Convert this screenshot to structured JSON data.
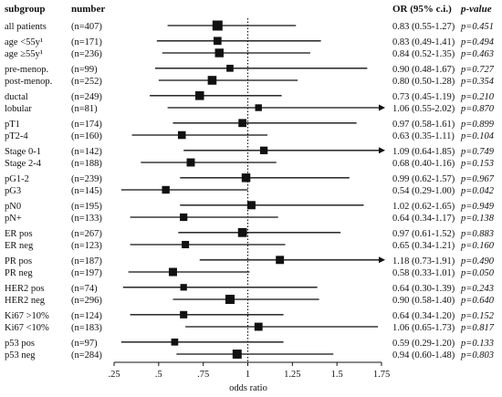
{
  "chart_data": {
    "type": "forest",
    "headers": {
      "subgroup": "subgroup",
      "number": "number",
      "or_ci": "OR (95% c.i.)",
      "pvalue": "p-value"
    },
    "xlabel": "odds ratio",
    "xlim": [
      0.25,
      1.75
    ],
    "x_ticks": [
      ".25",
      ".5",
      ".75",
      "1",
      "1.25",
      "1.5",
      "1.75"
    ],
    "reference_line": 1,
    "rows": [
      {
        "group": 0,
        "label": "all patients",
        "n": "(n=407)",
        "or": 0.83,
        "lo": 0.55,
        "hi": 1.27,
        "ci_text": "0.83 (0.55-1.27)",
        "p_text": "p=0.451",
        "weight": 1.0
      },
      {
        "group": 1,
        "label": "age <55y¹",
        "n": "(n=171)",
        "or": 0.83,
        "lo": 0.49,
        "hi": 1.41,
        "ci_text": "0.83 (0.49-1.41)",
        "p_text": "p=0.494",
        "weight": 0.42
      },
      {
        "group": 1,
        "label": "age ≥55y¹",
        "n": "(n=236)",
        "or": 0.84,
        "lo": 0.52,
        "hi": 1.35,
        "ci_text": "0.84 (0.52-1.35)",
        "p_text": "p=0.463",
        "weight": 0.58
      },
      {
        "group": 2,
        "label": "pre-menop.",
        "n": "(n=99)",
        "or": 0.9,
        "lo": 0.48,
        "hi": 1.67,
        "ci_text": "0.90 (0.48-1.67)",
        "p_text": "p=0.727",
        "weight": 0.24
      },
      {
        "group": 2,
        "label": "post-menop.",
        "n": "(n=252)",
        "or": 0.8,
        "lo": 0.5,
        "hi": 1.28,
        "ci_text": "0.80 (0.50-1.28)",
        "p_text": "p=0.354",
        "weight": 0.62
      },
      {
        "group": 3,
        "label": "ductal",
        "n": "(n=249)",
        "or": 0.73,
        "lo": 0.45,
        "hi": 1.19,
        "ci_text": "0.73 (0.45-1.19)",
        "p_text": "p=0.210",
        "weight": 0.61
      },
      {
        "group": 3,
        "label": "lobular",
        "n": "(n=81)",
        "or": 1.06,
        "lo": 0.55,
        "hi": 2.02,
        "ci_text": "1.06 (0.55-2.02)",
        "p_text": "p=0.870",
        "weight": 0.2
      },
      {
        "group": 4,
        "label": "pT1",
        "n": "(n=174)",
        "or": 0.97,
        "lo": 0.58,
        "hi": 1.61,
        "ci_text": "0.97 (0.58-1.61)",
        "p_text": "p=0.899",
        "weight": 0.43
      },
      {
        "group": 4,
        "label": "pT2-4",
        "n": "(n=160)",
        "or": 0.63,
        "lo": 0.35,
        "hi": 1.11,
        "ci_text": "0.63 (0.35-1.11)",
        "p_text": "p=0.104",
        "weight": 0.39
      },
      {
        "group": 5,
        "label": "Stage 0-1",
        "n": "(n=142)",
        "or": 1.09,
        "lo": 0.64,
        "hi": 1.85,
        "ci_text": "1.09 (0.64-1.85)",
        "p_text": "p=0.749",
        "weight": 0.35
      },
      {
        "group": 5,
        "label": "Stage 2-4",
        "n": "(n=188)",
        "or": 0.68,
        "lo": 0.4,
        "hi": 1.16,
        "ci_text": "0.68 (0.40-1.16)",
        "p_text": "p=0.153",
        "weight": 0.46
      },
      {
        "group": 6,
        "label": "pG1-2",
        "n": "(n=239)",
        "or": 0.99,
        "lo": 0.62,
        "hi": 1.57,
        "ci_text": "0.99 (0.62-1.57)",
        "p_text": "p=0.967",
        "weight": 0.59
      },
      {
        "group": 6,
        "label": "pG3",
        "n": "(n=145)",
        "or": 0.54,
        "lo": 0.29,
        "hi": 1.0,
        "ci_text": "0.54 (0.29-1.00)",
        "p_text": "p=0.042",
        "weight": 0.36
      },
      {
        "group": 7,
        "label": "pN0",
        "n": "(n=195)",
        "or": 1.02,
        "lo": 0.62,
        "hi": 1.65,
        "ci_text": "1.02 (0.62-1.65)",
        "p_text": "p=0.949",
        "weight": 0.48
      },
      {
        "group": 7,
        "label": "pN+",
        "n": "(n=133)",
        "or": 0.64,
        "lo": 0.34,
        "hi": 1.17,
        "ci_text": "0.64 (0.34-1.17)",
        "p_text": "p=0.138",
        "weight": 0.33
      },
      {
        "group": 8,
        "label": "ER pos",
        "n": "(n=267)",
        "or": 0.97,
        "lo": 0.61,
        "hi": 1.52,
        "ci_text": "0.97 (0.61-1.52)",
        "p_text": "p=0.883",
        "weight": 0.66
      },
      {
        "group": 8,
        "label": "ER neg",
        "n": "(n=123)",
        "or": 0.65,
        "lo": 0.34,
        "hi": 1.21,
        "ci_text": "0.65 (0.34-1.21)",
        "p_text": "p=0.160",
        "weight": 0.3
      },
      {
        "group": 9,
        "label": "PR pos",
        "n": "(n=187)",
        "or": 1.18,
        "lo": 0.73,
        "hi": 1.91,
        "ci_text": "1.18 (0.73-1.91)",
        "p_text": "p=0.490",
        "weight": 0.46
      },
      {
        "group": 9,
        "label": "PR neg",
        "n": "(n=197)",
        "or": 0.58,
        "lo": 0.33,
        "hi": 1.01,
        "ci_text": "0.58 (0.33-1.01)",
        "p_text": "p=0.050",
        "weight": 0.48
      },
      {
        "group": 10,
        "label": "HER2 pos",
        "n": "(n=74)",
        "or": 0.64,
        "lo": 0.3,
        "hi": 1.39,
        "ci_text": "0.64 (0.30-1.39)",
        "p_text": "p=0.243",
        "weight": 0.18
      },
      {
        "group": 10,
        "label": "HER2 neg",
        "n": "(n=296)",
        "or": 0.9,
        "lo": 0.58,
        "hi": 1.4,
        "ci_text": "0.90 (0.58-1.40)",
        "p_text": "p=0.640",
        "weight": 0.73
      },
      {
        "group": 11,
        "label": "Ki67 >10%",
        "n": "(n=124)",
        "or": 0.64,
        "lo": 0.34,
        "hi": 1.2,
        "ci_text": "0.64 (0.34-1.20)",
        "p_text": "p=0.152",
        "weight": 0.3
      },
      {
        "group": 11,
        "label": "Ki67 <10%",
        "n": "(n=183)",
        "or": 1.06,
        "lo": 0.65,
        "hi": 1.73,
        "ci_text": "1.06 (0.65-1.73)",
        "p_text": "p=0.817",
        "weight": 0.45
      },
      {
        "group": 12,
        "label": "p53 pos",
        "n": "(n=97)",
        "or": 0.59,
        "lo": 0.29,
        "hi": 1.2,
        "ci_text": "0.59 (0.29-1.20)",
        "p_text": "p=0.133",
        "weight": 0.24
      },
      {
        "group": 12,
        "label": "p53 neg",
        "n": "(n=284)",
        "or": 0.94,
        "lo": 0.6,
        "hi": 1.48,
        "ci_text": "0.94 (0.60-1.48)",
        "p_text": "p=0.803",
        "weight": 0.7
      }
    ]
  }
}
